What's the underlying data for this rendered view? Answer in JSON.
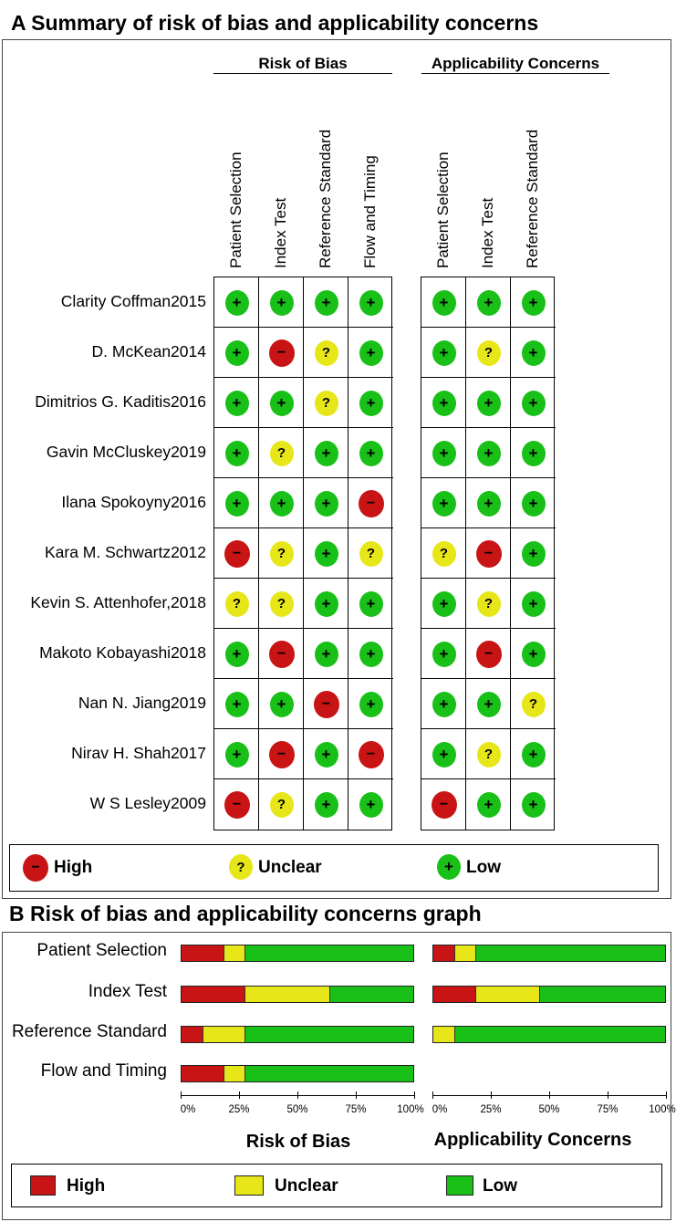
{
  "panelA": {
    "title": "A Summary of risk of bias and applicability concerns",
    "group_rob": "Risk of Bias",
    "group_ac": "Applicability Concerns",
    "rob_columns": [
      "Patient Selection",
      "Index Test",
      "Reference Standard",
      "Flow and Timing"
    ],
    "ac_columns": [
      "Patient Selection",
      "Index Test",
      "Reference Standard"
    ],
    "studies": [
      {
        "name": "Clarity Coffman2015",
        "rob": [
          "low",
          "low",
          "low",
          "low"
        ],
        "ac": [
          "low",
          "low",
          "low"
        ]
      },
      {
        "name": "D. McKean2014",
        "rob": [
          "low",
          "high",
          "unclear",
          "low"
        ],
        "ac": [
          "low",
          "unclear",
          "low"
        ]
      },
      {
        "name": "Dimitrios G. Kaditis2016",
        "rob": [
          "low",
          "low",
          "unclear",
          "low"
        ],
        "ac": [
          "low",
          "low",
          "low"
        ]
      },
      {
        "name": "Gavin McCluskey2019",
        "rob": [
          "low",
          "unclear",
          "low",
          "low"
        ],
        "ac": [
          "low",
          "low",
          "low"
        ]
      },
      {
        "name": "Ilana Spokoyny2016",
        "rob": [
          "low",
          "low",
          "low",
          "high"
        ],
        "ac": [
          "low",
          "low",
          "low"
        ]
      },
      {
        "name": "Kara M. Schwartz2012",
        "rob": [
          "high",
          "unclear",
          "low",
          "unclear"
        ],
        "ac": [
          "unclear",
          "high",
          "low"
        ]
      },
      {
        "name": "Kevin S. Attenhofer,2018",
        "rob": [
          "unclear",
          "unclear",
          "low",
          "low"
        ],
        "ac": [
          "low",
          "unclear",
          "low"
        ]
      },
      {
        "name": "Makoto Kobayashi2018",
        "rob": [
          "low",
          "high",
          "low",
          "low"
        ],
        "ac": [
          "low",
          "high",
          "low"
        ]
      },
      {
        "name": "Nan N. Jiang2019",
        "rob": [
          "low",
          "low",
          "high",
          "low"
        ],
        "ac": [
          "low",
          "low",
          "unclear"
        ]
      },
      {
        "name": "Nirav H. Shah2017",
        "rob": [
          "low",
          "high",
          "low",
          "high"
        ],
        "ac": [
          "low",
          "unclear",
          "low"
        ]
      },
      {
        "name": "W S Lesley2009",
        "rob": [
          "high",
          "unclear",
          "low",
          "low"
        ],
        "ac": [
          "high",
          "low",
          "low"
        ]
      }
    ],
    "symbols": {
      "low": "+",
      "unclear": "?",
      "high": "−"
    },
    "legend": {
      "high": "High",
      "unclear": "Unclear",
      "low": "Low"
    }
  },
  "panelB": {
    "title": "B Risk of bias and applicability concerns graph",
    "rob_title": "Risk of Bias",
    "ac_title": "Applicability Concerns",
    "legend": {
      "high": "High",
      "unclear": "Unclear",
      "low": "Low"
    }
  },
  "colors": {
    "high": "#c81414",
    "unclear": "#e6e618",
    "low": "#18c018"
  },
  "chart_data": {
    "type": "bar",
    "orientation": "horizontal-stacked-percent",
    "categories": [
      "Patient Selection",
      "Index Test",
      "Reference Standard",
      "Flow and Timing"
    ],
    "xlim": [
      0,
      100
    ],
    "ticks": [
      "0%",
      "25%",
      "50%",
      "75%",
      "100%"
    ],
    "panels": [
      {
        "title": "Risk of Bias",
        "series": [
          {
            "name": "High",
            "values": [
              18.2,
              27.3,
              9.1,
              18.2
            ]
          },
          {
            "name": "Unclear",
            "values": [
              9.1,
              36.4,
              18.2,
              9.1
            ]
          },
          {
            "name": "Low",
            "values": [
              72.7,
              36.3,
              72.7,
              72.7
            ]
          }
        ]
      },
      {
        "title": "Applicability Concerns",
        "series": [
          {
            "name": "High",
            "values": [
              9.1,
              18.2,
              0
            ]
          },
          {
            "name": "Unclear",
            "values": [
              9.1,
              27.3,
              9.1
            ]
          },
          {
            "name": "Low",
            "values": [
              81.8,
              54.5,
              90.9
            ]
          }
        ]
      }
    ]
  }
}
